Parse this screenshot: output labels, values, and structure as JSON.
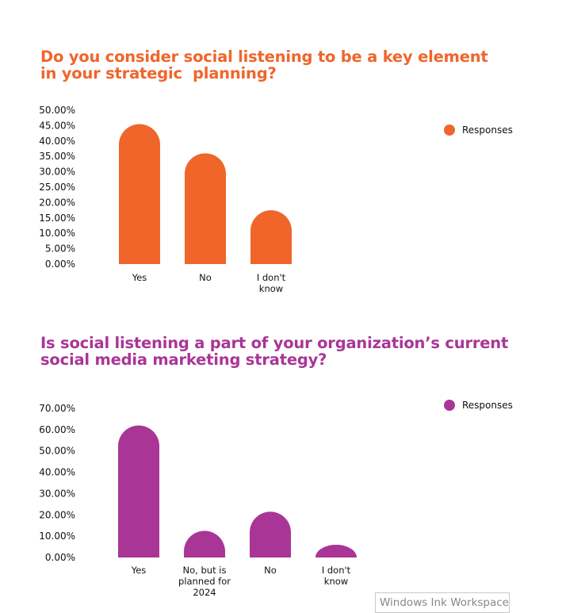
{
  "chart_data": [
    {
      "type": "bar",
      "title_lines": [
        "Do you consider social listening to be a key element",
        "in your strategic  planning?"
      ],
      "categories": [
        [
          "Yes"
        ],
        [
          "No"
        ],
        [
          "I don't",
          "know"
        ]
      ],
      "series": [
        {
          "name": "Responses",
          "values": [
            45.5,
            36.0,
            17.5
          ]
        }
      ],
      "ylim": [
        0,
        50
      ],
      "yticks": [
        "50.00%",
        "45.00%",
        "40.00%",
        "35.00%",
        "30.00%",
        "25.00%",
        "20.00%",
        "15.00%",
        "10.00%",
        "5.00%",
        "0.00%"
      ],
      "color": "#f0652a",
      "legend_position": "top-right",
      "grid": false
    },
    {
      "type": "bar",
      "title_lines": [
        "Is social listening a part of your organization’s current",
        "social media marketing strategy?"
      ],
      "categories": [
        [
          "Yes"
        ],
        [
          "No, but is",
          "planned for",
          "2024"
        ],
        [
          "No"
        ],
        [
          "I don't",
          "know"
        ]
      ],
      "series": [
        {
          "name": "Responses",
          "values": [
            62.0,
            12.5,
            21.5,
            6.0
          ]
        }
      ],
      "ylim": [
        0,
        70
      ],
      "yticks": [
        "70.00%",
        "60.00%",
        "50.00%",
        "40.00%",
        "30.00%",
        "20.00%",
        "10.00%",
        "0.00%"
      ],
      "color": "#a93696",
      "legend_position": "top-right",
      "grid": false
    }
  ],
  "watermark": "Windows Ink Workspace"
}
